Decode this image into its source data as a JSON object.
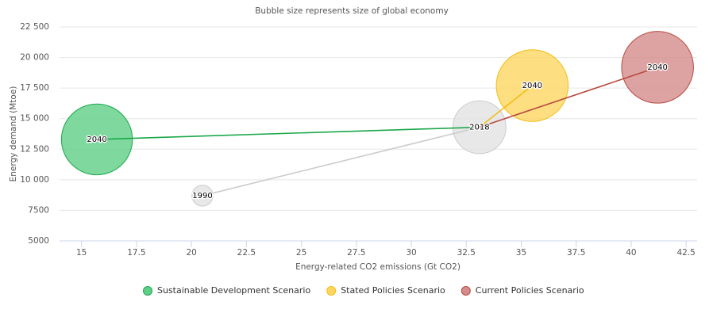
{
  "chart_data": {
    "type": "bubble",
    "subtitle": "Bubble size represents size of global economy",
    "x_label": "Energy-related CO2 emissions (Gt CO2)",
    "y_label": "Energy demand (Mtoe)",
    "xlim": [
      14,
      43
    ],
    "xticks": [
      15,
      17.5,
      20,
      22.5,
      25,
      27.5,
      30,
      32.5,
      35,
      37.5,
      40,
      42.5
    ],
    "ylim": [
      5000,
      22500
    ],
    "yticks": [
      5000,
      7500,
      {
        "value": 10000,
        "label": "10 000"
      },
      {
        "value": 12500,
        "label": "12 500"
      },
      {
        "value": 15000,
        "label": "15 000"
      },
      {
        "value": 17500,
        "label": "17 500"
      },
      {
        "value": 20000,
        "label": "20 000"
      },
      {
        "value": 22500,
        "label": "22 500"
      }
    ],
    "grid": true,
    "legend": "bottom",
    "series": [
      {
        "color": "#cccccc",
        "fill": "#e2e2e2",
        "x": [
          20.5,
          33.1
        ],
        "y": [
          8700,
          14300
        ],
        "z": [
          17,
          109
        ],
        "labels": [
          "1990",
          "2018"
        ]
      },
      {
        "name": "Sustainable Development Scenario",
        "color": "#1aa84a",
        "fill": "#5fcf87",
        "x": [
          33.1,
          15.7
        ],
        "y": [
          14300,
          13300
        ],
        "z": [
          null,
          195
        ],
        "labels": [
          null,
          "2040"
        ]
      },
      {
        "name": "Stated Policies Scenario",
        "color": "#f2bd16",
        "fill": "#fdd662",
        "x": [
          33.1,
          35.5
        ],
        "y": [
          14300,
          17700
        ],
        "z": [
          null,
          200
        ],
        "labels": [
          null,
          "2040"
        ]
      },
      {
        "name": "Current Policies Scenario",
        "color": "#b8493f",
        "fill": "#d48c8c",
        "x": [
          33.1,
          41.2
        ],
        "y": [
          14300,
          19200
        ],
        "z": [
          null,
          200
        ],
        "labels": [
          null,
          "2040"
        ]
      }
    ]
  }
}
